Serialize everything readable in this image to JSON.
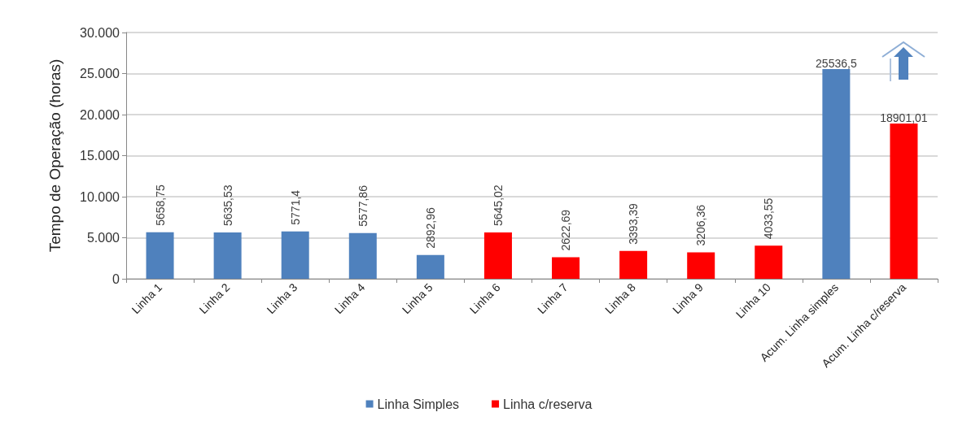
{
  "chart_data": {
    "type": "bar",
    "ylabel": "Tempo de Operação (horas)",
    "categories": [
      "Linha 1",
      "Linha 2",
      "Linha 3",
      "Linha 4",
      "Linha 5",
      "Linha 6",
      "Linha 7",
      "Linha 8",
      "Linha 9",
      "Linha 10",
      "Acum. Linha simples",
      "Acum. Linha c/reserva"
    ],
    "series": [
      {
        "name": "Linha Simples",
        "color": "#4f81bd",
        "values": [
          5658.75,
          5635.53,
          5771.4,
          5577.86,
          2892.96,
          null,
          null,
          null,
          null,
          null,
          25536.5,
          null
        ],
        "value_labels": [
          "5658,75",
          "5635,53",
          "5771,4",
          "5577,86",
          "2892,96",
          null,
          null,
          null,
          null,
          null,
          "25536,5",
          null
        ]
      },
      {
        "name": "Linha c/reserva",
        "color": "#ff0000",
        "values": [
          null,
          null,
          null,
          null,
          null,
          5645.02,
          2622.69,
          3393.39,
          3206.36,
          4033.55,
          null,
          18901.01
        ],
        "value_labels": [
          null,
          null,
          null,
          null,
          null,
          "5645,02",
          "2622,69",
          "3393,39",
          "3206,36",
          "4033,55",
          null,
          "18901,01"
        ]
      }
    ],
    "ylim": [
      0,
      30000
    ],
    "yticks": [
      {
        "value": 0,
        "label": "0"
      },
      {
        "value": 5000,
        "label": "5.000"
      },
      {
        "value": 10000,
        "label": "10.000"
      },
      {
        "value": 15000,
        "label": "15.000"
      },
      {
        "value": 20000,
        "label": "20.000"
      },
      {
        "value": 25000,
        "label": "25.000"
      },
      {
        "value": 30000,
        "label": "30.000"
      }
    ],
    "grid": "y",
    "legend": "bottom"
  }
}
